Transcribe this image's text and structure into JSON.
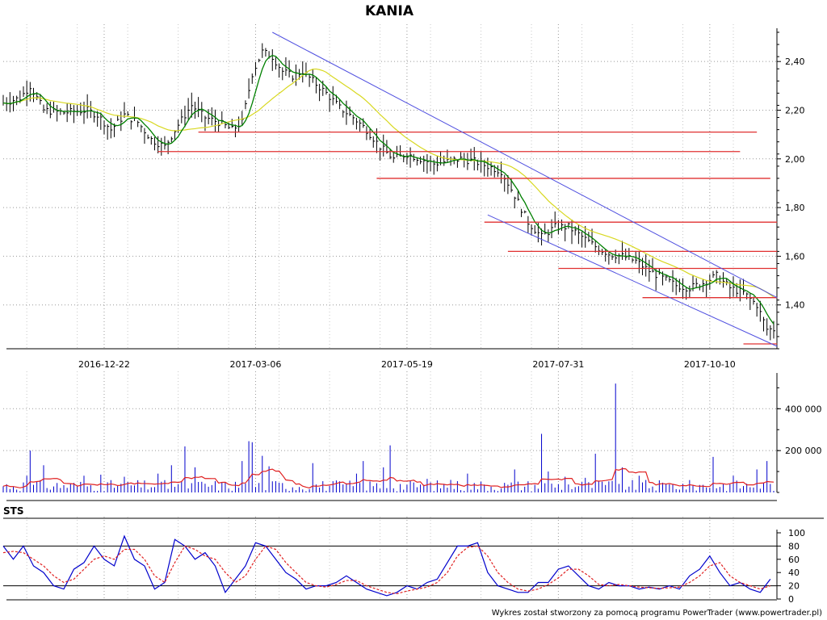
{
  "chart_data": [
    {
      "type": "line",
      "panel": "price",
      "title": "KANIA",
      "x_tick_labels": [
        "2016-12-22",
        "2017-03-06",
        "2017-05-19",
        "2017-07-31",
        "2017-10-10"
      ],
      "y_tick_labels": [
        "1,40",
        "1,60",
        "1,80",
        "2,00",
        "2,20",
        "2,40"
      ],
      "y_ticks": [
        1.4,
        1.6,
        1.8,
        2.0,
        2.2,
        2.4
      ],
      "ylim": [
        1.22,
        2.52
      ],
      "x_count": 230,
      "x_tick_index": [
        30,
        75,
        120,
        165,
        210
      ],
      "price_points": [
        [
          0,
          2.23
        ],
        [
          5,
          2.25
        ],
        [
          8,
          2.3
        ],
        [
          12,
          2.2
        ],
        [
          18,
          2.19
        ],
        [
          25,
          2.2
        ],
        [
          28,
          2.18
        ],
        [
          32,
          2.12
        ],
        [
          36,
          2.18
        ],
        [
          40,
          2.15
        ],
        [
          44,
          2.08
        ],
        [
          48,
          2.05
        ],
        [
          52,
          2.14
        ],
        [
          56,
          2.22
        ],
        [
          60,
          2.17
        ],
        [
          64,
          2.15
        ],
        [
          68,
          2.12
        ],
        [
          71,
          2.15
        ],
        [
          74,
          2.35
        ],
        [
          77,
          2.44
        ],
        [
          80,
          2.42
        ],
        [
          83,
          2.36
        ],
        [
          86,
          2.34
        ],
        [
          89,
          2.36
        ],
        [
          92,
          2.32
        ],
        [
          96,
          2.27
        ],
        [
          100,
          2.21
        ],
        [
          104,
          2.17
        ],
        [
          108,
          2.12
        ],
        [
          112,
          2.05
        ],
        [
          116,
          2.0
        ],
        [
          120,
          2.02
        ],
        [
          124,
          2.0
        ],
        [
          128,
          1.98
        ],
        [
          132,
          1.99
        ],
        [
          136,
          2.0
        ],
        [
          140,
          1.99
        ],
        [
          144,
          1.97
        ],
        [
          148,
          1.95
        ],
        [
          152,
          1.85
        ],
        [
          156,
          1.74
        ],
        [
          160,
          1.68
        ],
        [
          164,
          1.72
        ],
        [
          168,
          1.72
        ],
        [
          172,
          1.68
        ],
        [
          176,
          1.64
        ],
        [
          180,
          1.61
        ],
        [
          184,
          1.6
        ],
        [
          188,
          1.58
        ],
        [
          192,
          1.54
        ],
        [
          196,
          1.51
        ],
        [
          200,
          1.48
        ],
        [
          204,
          1.47
        ],
        [
          208,
          1.49
        ],
        [
          212,
          1.52
        ],
        [
          216,
          1.47
        ],
        [
          220,
          1.45
        ],
        [
          224,
          1.4
        ],
        [
          227,
          1.3
        ],
        [
          229,
          1.3
        ]
      ],
      "series": [
        {
          "name": "",
          "color": "#008000",
          "kind": "short MA"
        },
        {
          "name": "",
          "color": "#d8d820",
          "kind": "long MA"
        }
      ],
      "trend_lines": [
        {
          "color": "#5050e0",
          "from": [
            80,
            2.52
          ],
          "to": [
            230,
            1.43
          ]
        },
        {
          "color": "#5050e0",
          "from": [
            144,
            1.77
          ],
          "to": [
            230,
            1.23
          ]
        }
      ],
      "support_resistance": [
        {
          "level": 2.11,
          "x0": 58,
          "x1": 224,
          "color": "#e03030"
        },
        {
          "level": 2.03,
          "x0": 46,
          "x1": 219,
          "color": "#e03030"
        },
        {
          "level": 1.92,
          "x0": 111,
          "x1": 228,
          "color": "#e03030"
        },
        {
          "level": 1.74,
          "x0": 143,
          "x1": 230,
          "color": "#e03030"
        },
        {
          "level": 1.62,
          "x0": 150,
          "x1": 230,
          "color": "#e03030"
        },
        {
          "level": 1.55,
          "x0": 165,
          "x1": 230,
          "color": "#e03030"
        },
        {
          "level": 1.43,
          "x0": 190,
          "x1": 230,
          "color": "#e03030"
        },
        {
          "level": 1.24,
          "x0": 220,
          "x1": 230,
          "color": "#e03030"
        }
      ]
    },
    {
      "type": "bar",
      "panel": "volume",
      "y_tick_labels": [
        "200 000",
        "400 000"
      ],
      "y_ticks": [
        200000,
        400000
      ],
      "ylim": [
        0,
        540000
      ],
      "bar_color": "#0000cc",
      "ma_color": "#e02020",
      "x_count": 230,
      "spikes": [
        [
          7,
          80000
        ],
        [
          8,
          200000
        ],
        [
          12,
          130000
        ],
        [
          24,
          80000
        ],
        [
          29,
          85000
        ],
        [
          36,
          75000
        ],
        [
          46,
          90000
        ],
        [
          50,
          130000
        ],
        [
          54,
          220000
        ],
        [
          57,
          120000
        ],
        [
          71,
          150000
        ],
        [
          73,
          245000
        ],
        [
          74,
          240000
        ],
        [
          77,
          175000
        ],
        [
          79,
          125000
        ],
        [
          92,
          140000
        ],
        [
          105,
          90000
        ],
        [
          107,
          150000
        ],
        [
          113,
          120000
        ],
        [
          115,
          225000
        ],
        [
          126,
          65000
        ],
        [
          133,
          60000
        ],
        [
          138,
          90000
        ],
        [
          152,
          110000
        ],
        [
          160,
          280000
        ],
        [
          162,
          100000
        ],
        [
          167,
          75000
        ],
        [
          173,
          70000
        ],
        [
          176,
          185000
        ],
        [
          182,
          520000
        ],
        [
          184,
          120000
        ],
        [
          189,
          80000
        ],
        [
          199,
          40000
        ],
        [
          211,
          170000
        ],
        [
          217,
          80000
        ],
        [
          224,
          110000
        ],
        [
          227,
          150000
        ]
      ]
    },
    {
      "type": "line",
      "panel": "oscillator",
      "title": "STS",
      "y_tick_labels": [
        "0",
        "20",
        "40",
        "60",
        "80",
        "100"
      ],
      "y_ticks": [
        0,
        20,
        40,
        60,
        80,
        100
      ],
      "ylim": [
        0,
        100
      ],
      "reference_lines": [
        20,
        80
      ],
      "x_count": 230,
      "series": [
        {
          "name": "",
          "color": "#0000cc",
          "points": [
            [
              0,
              80
            ],
            [
              3,
              60
            ],
            [
              6,
              80
            ],
            [
              9,
              50
            ],
            [
              12,
              40
            ],
            [
              15,
              20
            ],
            [
              18,
              15
            ],
            [
              21,
              45
            ],
            [
              24,
              55
            ],
            [
              27,
              80
            ],
            [
              30,
              60
            ],
            [
              33,
              50
            ],
            [
              36,
              95
            ],
            [
              39,
              60
            ],
            [
              42,
              50
            ],
            [
              45,
              15
            ],
            [
              48,
              25
            ],
            [
              51,
              90
            ],
            [
              54,
              80
            ],
            [
              57,
              60
            ],
            [
              60,
              70
            ],
            [
              63,
              50
            ],
            [
              66,
              10
            ],
            [
              69,
              30
            ],
            [
              72,
              50
            ],
            [
              75,
              85
            ],
            [
              78,
              80
            ],
            [
              81,
              60
            ],
            [
              84,
              40
            ],
            [
              87,
              30
            ],
            [
              90,
              15
            ],
            [
              93,
              20
            ],
            [
              96,
              20
            ],
            [
              99,
              25
            ],
            [
              102,
              35
            ],
            [
              105,
              25
            ],
            [
              108,
              15
            ],
            [
              111,
              10
            ],
            [
              114,
              5
            ],
            [
              117,
              10
            ],
            [
              120,
              20
            ],
            [
              123,
              15
            ],
            [
              126,
              25
            ],
            [
              129,
              30
            ],
            [
              132,
              55
            ],
            [
              135,
              80
            ],
            [
              138,
              80
            ],
            [
              141,
              85
            ],
            [
              144,
              40
            ],
            [
              147,
              20
            ],
            [
              150,
              15
            ],
            [
              153,
              10
            ],
            [
              156,
              10
            ],
            [
              159,
              25
            ],
            [
              162,
              25
            ],
            [
              165,
              45
            ],
            [
              168,
              50
            ],
            [
              171,
              35
            ],
            [
              174,
              20
            ],
            [
              177,
              15
            ],
            [
              180,
              25
            ],
            [
              183,
              20
            ],
            [
              186,
              20
            ],
            [
              189,
              15
            ],
            [
              192,
              18
            ],
            [
              195,
              15
            ],
            [
              198,
              20
            ],
            [
              201,
              15
            ],
            [
              204,
              35
            ],
            [
              207,
              45
            ],
            [
              210,
              65
            ],
            [
              213,
              40
            ],
            [
              216,
              20
            ],
            [
              219,
              25
            ],
            [
              222,
              15
            ],
            [
              225,
              10
            ],
            [
              228,
              30
            ]
          ]
        },
        {
          "name": "",
          "color": "#e02020",
          "dashed": true,
          "points": [
            [
              0,
              70
            ],
            [
              3,
              72
            ],
            [
              6,
              70
            ],
            [
              9,
              60
            ],
            [
              12,
              50
            ],
            [
              15,
              35
            ],
            [
              18,
              25
            ],
            [
              21,
              30
            ],
            [
              24,
              45
            ],
            [
              27,
              60
            ],
            [
              30,
              65
            ],
            [
              33,
              60
            ],
            [
              36,
              75
            ],
            [
              39,
              75
            ],
            [
              42,
              60
            ],
            [
              45,
              35
            ],
            [
              48,
              25
            ],
            [
              51,
              55
            ],
            [
              54,
              80
            ],
            [
              57,
              75
            ],
            [
              60,
              65
            ],
            [
              63,
              60
            ],
            [
              66,
              40
            ],
            [
              69,
              25
            ],
            [
              72,
              35
            ],
            [
              75,
              60
            ],
            [
              78,
              80
            ],
            [
              81,
              75
            ],
            [
              84,
              55
            ],
            [
              87,
              40
            ],
            [
              90,
              25
            ],
            [
              93,
              20
            ],
            [
              96,
              18
            ],
            [
              99,
              22
            ],
            [
              102,
              28
            ],
            [
              105,
              28
            ],
            [
              108,
              20
            ],
            [
              111,
              15
            ],
            [
              114,
              10
            ],
            [
              117,
              8
            ],
            [
              120,
              12
            ],
            [
              123,
              15
            ],
            [
              126,
              18
            ],
            [
              129,
              25
            ],
            [
              132,
              40
            ],
            [
              135,
              65
            ],
            [
              138,
              78
            ],
            [
              141,
              80
            ],
            [
              144,
              65
            ],
            [
              147,
              40
            ],
            [
              150,
              25
            ],
            [
              153,
              15
            ],
            [
              156,
              12
            ],
            [
              159,
              15
            ],
            [
              162,
              22
            ],
            [
              165,
              32
            ],
            [
              168,
              45
            ],
            [
              171,
              45
            ],
            [
              174,
              35
            ],
            [
              177,
              22
            ],
            [
              180,
              20
            ],
            [
              183,
              22
            ],
            [
              186,
              20
            ],
            [
              189,
              18
            ],
            [
              192,
              17
            ],
            [
              195,
              16
            ],
            [
              198,
              17
            ],
            [
              201,
              18
            ],
            [
              204,
              25
            ],
            [
              207,
              35
            ],
            [
              210,
              50
            ],
            [
              213,
              55
            ],
            [
              216,
              35
            ],
            [
              219,
              25
            ],
            [
              222,
              20
            ],
            [
              225,
              15
            ],
            [
              228,
              20
            ]
          ]
        }
      ]
    }
  ],
  "footer": "Wykres został stworzony za pomocą programu PowerTrader (www.powertrader.pl)"
}
